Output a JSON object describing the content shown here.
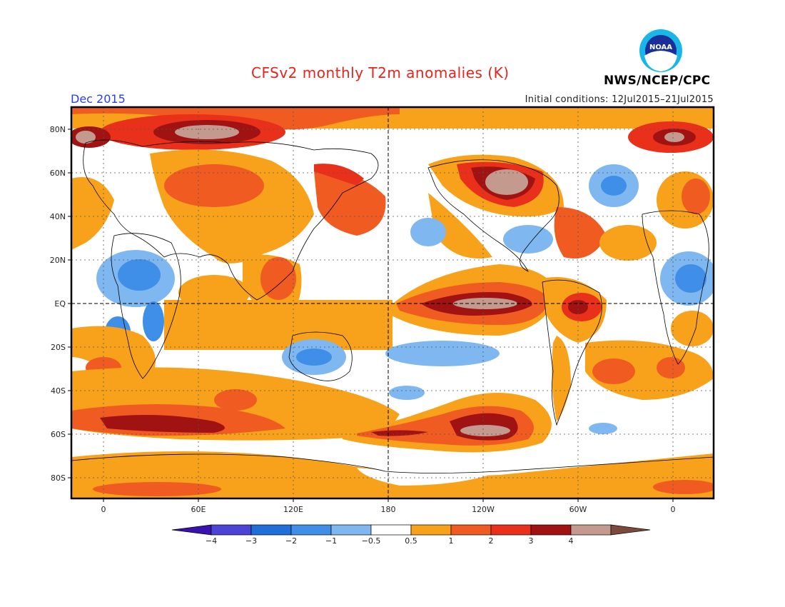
{
  "title": "CFSv2 monthly T2m anomalies (K)",
  "month_label": "Dec 2015",
  "initial_conditions": "Initial conditions: 12Jul2015–21Jul2015",
  "agency": "NWS/NCEP/CPC",
  "logo_text": "NOAA",
  "lat_labels": [
    "80N",
    "60N",
    "40N",
    "20N",
    "EQ",
    "20S",
    "40S",
    "60S",
    "80S"
  ],
  "lon_labels": [
    "0",
    "60E",
    "120E",
    "180",
    "120W",
    "60W",
    "0"
  ],
  "colorbar": {
    "ticks": [
      "−4",
      "−3",
      "−2",
      "−1",
      "−0.5",
      "0.5",
      "1",
      "2",
      "3",
      "4"
    ],
    "colors": [
      "#3a12b0",
      "#4b44d6",
      "#1f6fd8",
      "#3f8fe8",
      "#7fb8f0",
      "#ffffff",
      "#f7a21a",
      "#f05b22",
      "#e8301a",
      "#a11212",
      "#c49a8e",
      "#7a4a3c"
    ]
  }
}
